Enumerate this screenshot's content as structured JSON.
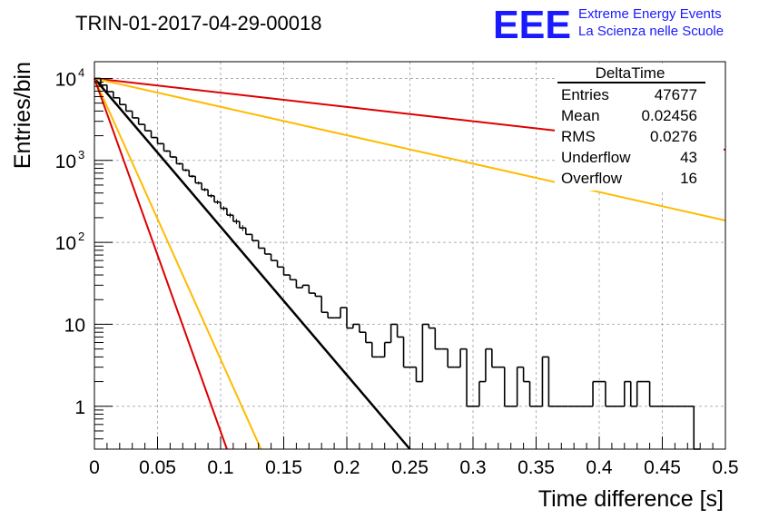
{
  "header": {
    "title": "TRIN-01-2017-04-29-00018",
    "logo": {
      "mark": "EEE",
      "line1": "Extreme Energy Events",
      "line2": "La Scienza nelle Scuole",
      "color": "#1a1aff"
    }
  },
  "chart_data": {
    "type": "histogram",
    "xlabel": "Time difference [s]",
    "ylabel": "Entries/bin",
    "xlim": [
      0,
      0.5
    ],
    "ylim": [
      0.3,
      16000
    ],
    "yscale": "log",
    "grid": true,
    "x_ticks": [
      "0",
      "0.05",
      "0.1",
      "0.15",
      "0.2",
      "0.25",
      "0.3",
      "0.35",
      "0.4",
      "0.45",
      "0.5"
    ],
    "y_ticks": [
      {
        "value": 1,
        "label": "1"
      },
      {
        "value": 10,
        "label": "10"
      },
      {
        "value": 100,
        "label": "10",
        "exp": "2"
      },
      {
        "value": 1000,
        "label": "10",
        "exp": "3"
      },
      {
        "value": 10000,
        "label": "10",
        "exp": "4"
      }
    ],
    "stats_box": {
      "title": "DeltaTime",
      "rows": [
        {
          "label": "Entries",
          "value": "47677"
        },
        {
          "label": "Mean",
          "value": "0.02456"
        },
        {
          "label": "RMS",
          "value": "0.0276"
        },
        {
          "label": "Underflow",
          "value": "43"
        },
        {
          "label": "Overflow",
          "value": "16"
        }
      ]
    },
    "histogram": {
      "bin_width": 0.005,
      "bins": [
        [
          0.0,
          10000
        ],
        [
          0.005,
          8300
        ],
        [
          0.01,
          6900
        ],
        [
          0.015,
          5800
        ],
        [
          0.02,
          4800
        ],
        [
          0.025,
          4000
        ],
        [
          0.03,
          3300
        ],
        [
          0.035,
          2750
        ],
        [
          0.04,
          2300
        ],
        [
          0.045,
          1900
        ],
        [
          0.05,
          1600
        ],
        [
          0.055,
          1300
        ],
        [
          0.06,
          1100
        ],
        [
          0.065,
          910
        ],
        [
          0.07,
          760
        ],
        [
          0.075,
          640
        ],
        [
          0.08,
          530
        ],
        [
          0.085,
          440
        ],
        [
          0.09,
          370
        ],
        [
          0.095,
          310
        ],
        [
          0.1,
          260
        ],
        [
          0.105,
          215
        ],
        [
          0.11,
          180
        ],
        [
          0.115,
          150
        ],
        [
          0.12,
          125
        ],
        [
          0.125,
          105
        ],
        [
          0.13,
          85
        ],
        [
          0.135,
          72
        ],
        [
          0.14,
          60
        ],
        [
          0.145,
          50
        ],
        [
          0.15,
          40
        ],
        [
          0.155,
          35
        ],
        [
          0.16,
          28
        ],
        [
          0.165,
          30
        ],
        [
          0.17,
          24
        ],
        [
          0.175,
          22
        ],
        [
          0.18,
          14
        ],
        [
          0.185,
          12
        ],
        [
          0.19,
          12
        ],
        [
          0.195,
          16
        ],
        [
          0.2,
          9
        ],
        [
          0.205,
          10
        ],
        [
          0.21,
          8
        ],
        [
          0.215,
          6
        ],
        [
          0.22,
          4
        ],
        [
          0.225,
          4
        ],
        [
          0.23,
          6
        ],
        [
          0.235,
          10
        ],
        [
          0.24,
          7
        ],
        [
          0.245,
          3
        ],
        [
          0.25,
          3
        ],
        [
          0.255,
          2
        ],
        [
          0.26,
          10
        ],
        [
          0.265,
          9
        ],
        [
          0.27,
          5
        ],
        [
          0.275,
          5
        ],
        [
          0.28,
          3
        ],
        [
          0.285,
          3
        ],
        [
          0.29,
          5
        ],
        [
          0.295,
          1
        ],
        [
          0.3,
          1
        ],
        [
          0.305,
          2
        ],
        [
          0.31,
          5
        ],
        [
          0.315,
          3
        ],
        [
          0.32,
          3
        ],
        [
          0.325,
          1
        ],
        [
          0.33,
          1
        ],
        [
          0.335,
          3
        ],
        [
          0.34,
          2
        ],
        [
          0.345,
          1
        ],
        [
          0.35,
          1
        ],
        [
          0.355,
          4
        ],
        [
          0.36,
          1
        ],
        [
          0.365,
          1
        ],
        [
          0.37,
          1
        ],
        [
          0.375,
          1
        ],
        [
          0.38,
          1
        ],
        [
          0.385,
          1
        ],
        [
          0.39,
          1
        ],
        [
          0.395,
          2
        ],
        [
          0.4,
          2
        ],
        [
          0.405,
          1
        ],
        [
          0.41,
          1
        ],
        [
          0.415,
          1
        ],
        [
          0.42,
          2
        ],
        [
          0.425,
          1
        ],
        [
          0.43,
          2
        ],
        [
          0.435,
          2
        ],
        [
          0.44,
          1
        ],
        [
          0.445,
          1
        ],
        [
          0.45,
          1
        ],
        [
          0.455,
          1
        ],
        [
          0.46,
          1
        ],
        [
          0.465,
          1
        ],
        [
          0.47,
          1
        ],
        [
          0.475,
          0
        ]
      ]
    },
    "series": [
      {
        "kind": "fit",
        "color": "#000000",
        "points": [
          [
            0,
            10000
          ],
          [
            0.25,
            0.3
          ]
        ]
      },
      {
        "kind": "reference",
        "color": "#dd0000",
        "points": [
          [
            0,
            10000
          ],
          [
            0.5,
            1350
          ]
        ]
      },
      {
        "kind": "reference",
        "color": "#ffbb00",
        "points": [
          [
            0,
            10000
          ],
          [
            0.5,
            185
          ]
        ]
      },
      {
        "kind": "reference",
        "color": "#ffbb00",
        "points": [
          [
            0,
            10000
          ],
          [
            0.132,
            0.3
          ]
        ]
      },
      {
        "kind": "reference",
        "color": "#dd0000",
        "points": [
          [
            0,
            10000
          ],
          [
            0.105,
            0.3
          ]
        ]
      }
    ]
  }
}
